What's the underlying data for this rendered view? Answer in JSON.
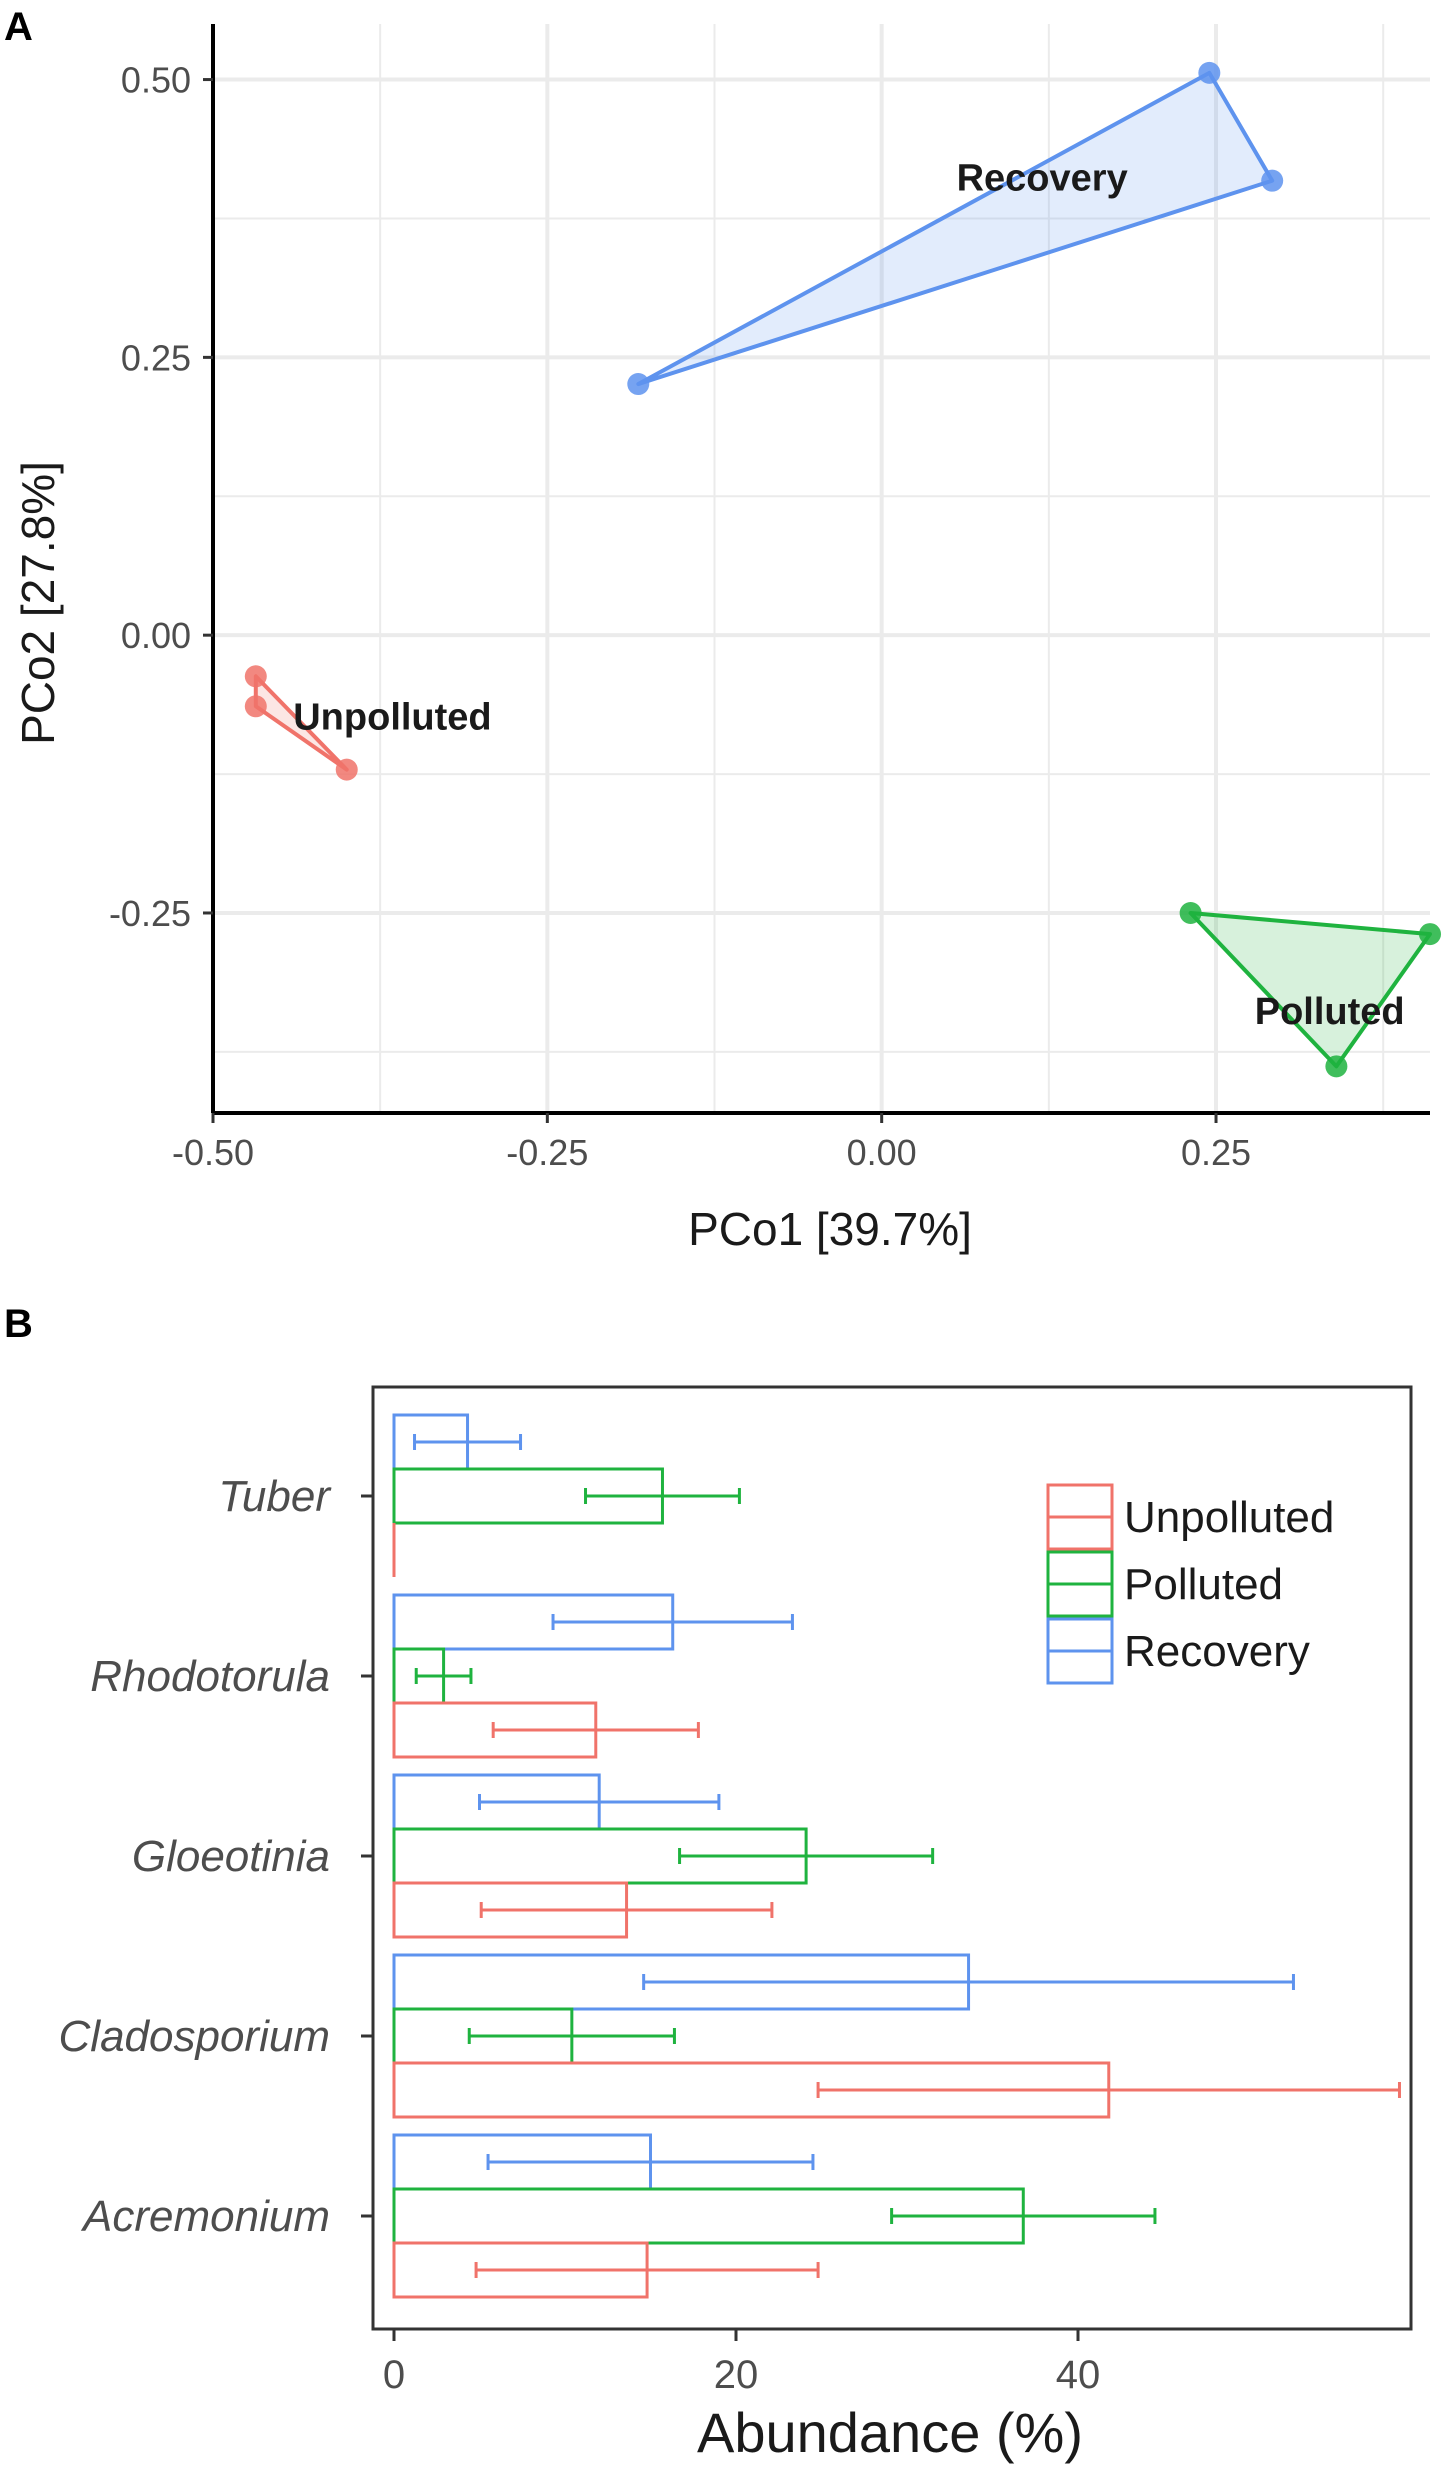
{
  "colors": {
    "Unpolluted": "#F0736A",
    "Polluted": "#1FB33F",
    "Recovery": "#5E93EE",
    "grid": "#EBEBEB",
    "axis": "#000000"
  },
  "chart_data": [
    {
      "panel": "A",
      "type": "scatter",
      "xlabel": "PCo1 [39.7%]",
      "ylabel": "PCo2 [27.8%]",
      "xlim": [
        -0.5,
        0.41
      ],
      "ylim": [
        -0.43,
        0.55
      ],
      "xticks": [
        -0.5,
        -0.25,
        0.0,
        0.25
      ],
      "xtick_labels": [
        "-0.50",
        "-0.25",
        "0.00",
        "0.25"
      ],
      "yticks": [
        -0.25,
        0.0,
        0.25,
        0.5
      ],
      "ytick_labels": [
        "-0.25",
        "0.00",
        "0.25",
        "0.50"
      ],
      "groups": [
        {
          "name": "Recovery",
          "label": "Recovery",
          "points": [
            [
              -0.182,
              0.226
            ],
            [
              0.245,
              0.506
            ],
            [
              0.292,
              0.409
            ]
          ]
        },
        {
          "name": "Unpolluted",
          "label": "Unpolluted",
          "points": [
            [
              -0.468,
              -0.037
            ],
            [
              -0.468,
              -0.064
            ],
            [
              -0.4,
              -0.121
            ]
          ]
        },
        {
          "name": "Polluted",
          "label": "Polluted",
          "points": [
            [
              0.231,
              -0.25
            ],
            [
              0.41,
              -0.269
            ],
            [
              0.34,
              -0.388
            ]
          ]
        }
      ]
    },
    {
      "panel": "B",
      "type": "bar",
      "orientation": "horizontal",
      "xlabel": "Abundance (%)",
      "xlim": [
        0,
        60
      ],
      "xticks": [
        0,
        20,
        40
      ],
      "xtick_labels": [
        "0",
        "20",
        "40"
      ],
      "categories": [
        "Tuber",
        "Rhodotorula",
        "Gloeotinia",
        "Cladosporium",
        "Acremonium"
      ],
      "series": [
        {
          "name": "Unpolluted",
          "values": [
            0.0,
            11.8,
            13.6,
            41.8,
            14.8
          ],
          "errors": [
            0.0,
            6.0,
            8.5,
            17.0,
            10.0
          ]
        },
        {
          "name": "Polluted",
          "values": [
            15.7,
            2.9,
            24.1,
            10.4,
            36.8
          ],
          "errors": [
            4.5,
            1.6,
            7.4,
            6.0,
            7.7
          ]
        },
        {
          "name": "Recovery",
          "values": [
            4.3,
            16.3,
            12.0,
            33.6,
            15.0
          ],
          "errors": [
            3.1,
            7.0,
            7.0,
            19.0,
            9.5
          ]
        }
      ],
      "legend": {
        "position": "top-right",
        "entries": [
          "Unpolluted",
          "Polluted",
          "Recovery"
        ]
      }
    }
  ],
  "panels": {
    "a_label": "A",
    "b_label": "B"
  }
}
